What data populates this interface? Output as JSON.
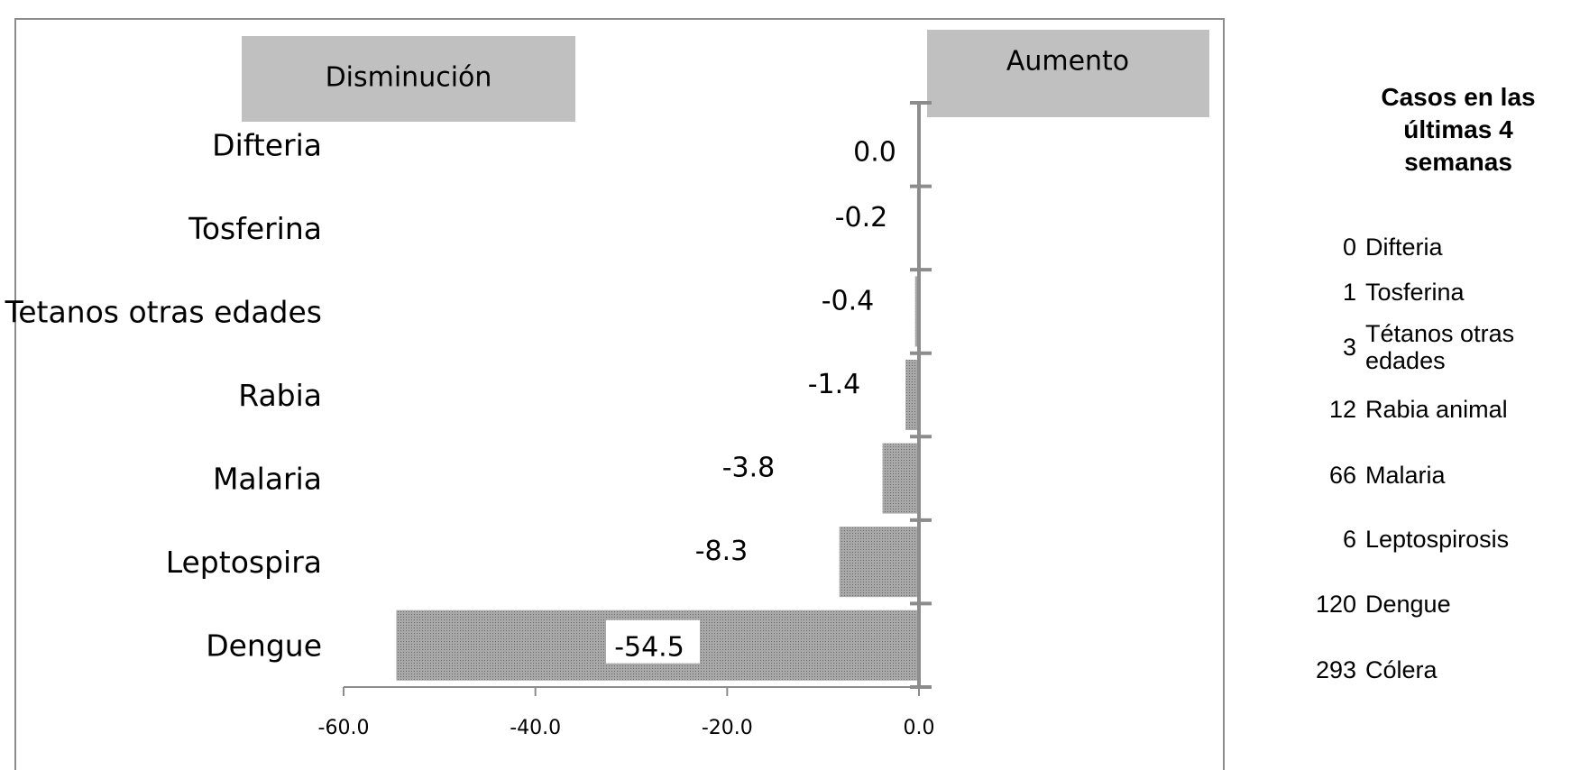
{
  "chart_data": {
    "type": "bar",
    "orientation": "horizontal",
    "categories": [
      "Difteria",
      "Tosferina",
      "Tetanos otras edades",
      "Rabia",
      "Malaria",
      "Leptospira",
      "Dengue"
    ],
    "values": [
      0.0,
      -0.2,
      -0.4,
      -1.4,
      -3.8,
      -8.3,
      -54.5
    ],
    "value_labels": [
      "0.0",
      "-0.2",
      "-0.4",
      "-1.4",
      "-3.8",
      "-8.3",
      "-54.5"
    ],
    "xlim": [
      -60,
      0
    ],
    "xticks": [
      "-60.0",
      "-40.0",
      "-20.0",
      "0.0"
    ],
    "annotations": {
      "decrease": "Disminución",
      "increase": "Aumento"
    },
    "grid": false,
    "colors": {
      "bar_fill": "#9a9a9a",
      "axis": "#8c8c8c",
      "box_fill": "#c0c0c0",
      "frame": "#8c8c8c"
    }
  },
  "side_table": {
    "title_lines": [
      "Casos en las",
      "últimas 4",
      "semanas"
    ],
    "rows": [
      {
        "count": "0",
        "name": "Difteria"
      },
      {
        "count": "1",
        "name": "Tosferina"
      },
      {
        "count": "3",
        "name": "Tétanos otras edades"
      },
      {
        "count": "12",
        "name": "Rabia animal"
      },
      {
        "count": "66",
        "name": "Malaria"
      },
      {
        "count": "6",
        "name": "Leptospirosis"
      },
      {
        "count": "120",
        "name": "Dengue"
      },
      {
        "count": "293",
        "name": "Cólera"
      }
    ]
  }
}
